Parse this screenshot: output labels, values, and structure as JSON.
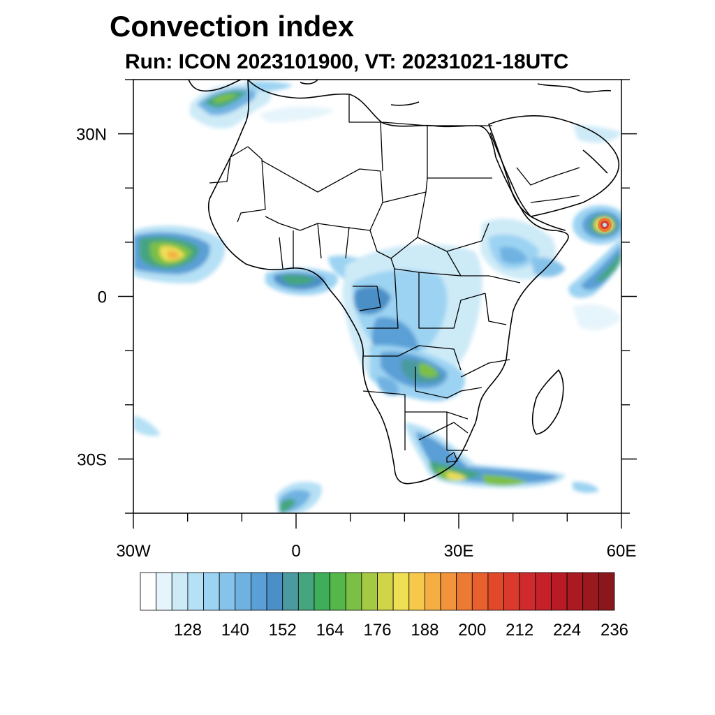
{
  "title": "Convection index",
  "subtitle": "Run: ICON 2023101900,  VT: 20231021-18UTC",
  "map": {
    "projection": "cylindrical-equidistant",
    "lon_range": [
      -30,
      60
    ],
    "lat_range": [
      -40,
      40
    ],
    "lat_ticks": [
      {
        "lat": 30,
        "label": "30N"
      },
      {
        "lat": 0,
        "label": "0"
      },
      {
        "lat": -30,
        "label": "30S"
      }
    ],
    "lon_ticks": [
      {
        "lon": -30,
        "label": "30W"
      },
      {
        "lon": 0,
        "label": "0"
      },
      {
        "lon": 30,
        "label": "30E"
      },
      {
        "lon": 60,
        "label": "60E"
      }
    ],
    "minor_step_deg": 10,
    "features": [
      {
        "name": "north-atlantic-cyclone",
        "lon": -13,
        "lat": 36.5,
        "peak": 170
      },
      {
        "name": "west-atlantic-itcz-cluster",
        "lon": -24,
        "lat": 7,
        "peak": 200
      },
      {
        "name": "gulf-of-guinea-band",
        "lon": 3,
        "lat": 3,
        "peak": 168
      },
      {
        "name": "congo-basin-convection",
        "lon": 21,
        "lat": -5,
        "peak": 160
      },
      {
        "name": "zambia-convection",
        "lon": 26,
        "lat": -12,
        "peak": 172
      },
      {
        "name": "ethiopia-highlands",
        "lon": 38,
        "lat": 7,
        "peak": 150
      },
      {
        "name": "arabian-sea-cyclone",
        "lon": 57.5,
        "lat": 13.5,
        "peak": 224
      },
      {
        "name": "indian-ocean-band",
        "lon": 56,
        "lat": 5,
        "peak": 175
      },
      {
        "name": "south-africa-front",
        "lon": 33,
        "lat": -33,
        "peak": 186
      },
      {
        "name": "south-atlantic-cloud",
        "lon": -2,
        "lat": -38,
        "peak": 165
      }
    ]
  },
  "colorbar": {
    "levels": [
      116,
      120,
      124,
      128,
      132,
      136,
      140,
      144,
      148,
      152,
      156,
      160,
      164,
      168,
      172,
      176,
      180,
      184,
      188,
      192,
      196,
      200,
      204,
      208,
      212,
      216,
      220,
      224,
      228,
      232,
      236
    ],
    "labels": [
      "128",
      "140",
      "152",
      "164",
      "176",
      "188",
      "200",
      "212",
      "224",
      "236"
    ],
    "colors": [
      "#ffffff",
      "#e6f4fb",
      "#cdeaf7",
      "#b5e0f5",
      "#9cd3f2",
      "#86c3ea",
      "#6fb2e2",
      "#5a9fd6",
      "#4b8fc7",
      "#4a9a9f",
      "#45a57e",
      "#3fae5b",
      "#55b64a",
      "#7cbf47",
      "#a6c944",
      "#cfd449",
      "#eedf54",
      "#f6c94c",
      "#f5ae43",
      "#f1943b",
      "#ec7a33",
      "#e7602d",
      "#e04a2b",
      "#d93a2b",
      "#cf2b2e",
      "#c42129",
      "#b81b25",
      "#a91a22",
      "#9a191f",
      "#8a171b"
    ]
  }
}
